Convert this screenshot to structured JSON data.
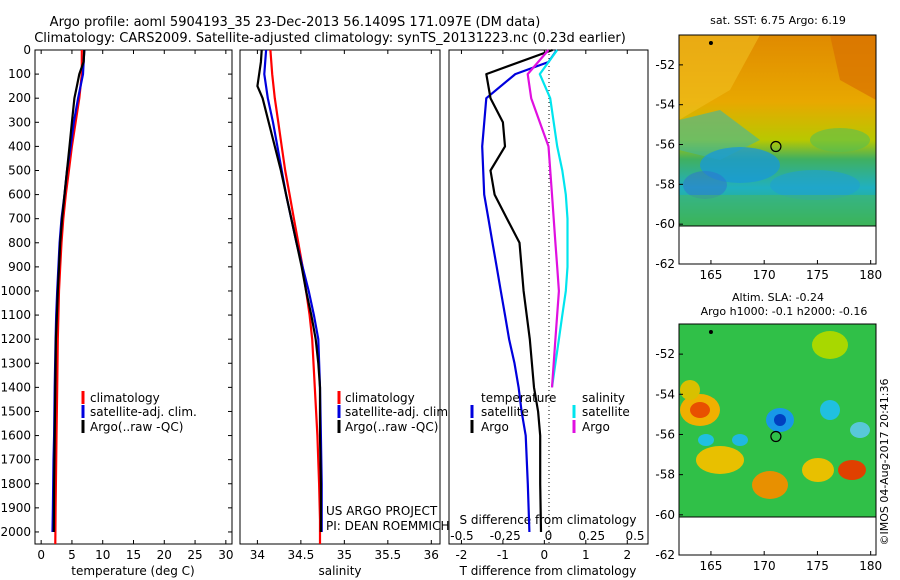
{
  "header": {
    "line1": "Argo profile: aoml 5904193_35 23-Dec-2013 56.1409S 171.097E (DM data)",
    "line2": "Climatology: CARS2009. Satellite-adjusted climatology: synTS_20131223.nc (0.23d earlier)"
  },
  "colors": {
    "climatology": "#ff0000",
    "satellite": "#0000dd",
    "argo": "#000000",
    "salinity_sat": "#00e5ee",
    "salinity_argo": "#e010e0"
  },
  "chart_data": [
    {
      "type": "line",
      "xlabel": "temperature (deg C)",
      "ylabel": "",
      "xlim": [
        -1,
        31
      ],
      "ylim": [
        2050,
        0
      ],
      "xticks": [
        0,
        5,
        10,
        15,
        20,
        25,
        30
      ],
      "yticks": [
        0,
        100,
        200,
        300,
        400,
        500,
        600,
        700,
        800,
        900,
        1000,
        1100,
        1200,
        1300,
        1400,
        1500,
        1600,
        1700,
        1800,
        1900,
        2000
      ],
      "legend": [
        "climatology",
        "satellite-adj. clim.",
        "Argo(..raw -QC)"
      ],
      "series": [
        {
          "name": "climatology",
          "color": "#ff0000",
          "x": [
            6.6,
            6.6,
            6.2,
            5.6,
            5.0,
            4.5,
            4.0,
            3.6,
            3.3,
            3.1,
            2.9,
            2.8,
            2.7,
            2.6,
            2.5,
            2.45,
            2.4,
            2.35,
            2.3
          ],
          "y": [
            0,
            100,
            200,
            300,
            400,
            500,
            600,
            700,
            800,
            900,
            1000,
            1100,
            1200,
            1400,
            1600,
            1700,
            1800,
            1900,
            2050
          ]
        },
        {
          "name": "satellite-adj. clim.",
          "color": "#0000dd",
          "x": [
            7.0,
            6.8,
            6.0,
            5.3,
            4.8,
            4.2,
            3.8,
            3.3,
            3.0,
            2.8,
            2.6,
            2.45,
            2.35,
            2.2,
            2.1,
            2.0,
            1.95,
            1.9,
            1.85
          ],
          "y": [
            0,
            100,
            200,
            300,
            400,
            500,
            600,
            700,
            800,
            900,
            1000,
            1100,
            1200,
            1400,
            1600,
            1700,
            1800,
            1900,
            2000
          ]
        },
        {
          "name": "Argo(..raw -QC)",
          "color": "#000000",
          "x": [
            7.0,
            6.9,
            6.2,
            5.8,
            5.4,
            5.0,
            4.6,
            4.2,
            3.8,
            3.4,
            3.1,
            2.9,
            2.7,
            2.55,
            2.4,
            2.3,
            2.2,
            2.1,
            2.05
          ],
          "y": [
            0,
            50,
            100,
            150,
            200,
            300,
            400,
            500,
            600,
            700,
            800,
            900,
            1000,
            1100,
            1200,
            1400,
            1600,
            1800,
            2000
          ]
        }
      ]
    },
    {
      "type": "line",
      "xlabel": "salinity",
      "xlim": [
        33.8,
        36.1
      ],
      "ylim": [
        2050,
        0
      ],
      "xticks": [
        34,
        34.5,
        35,
        35.5,
        36
      ],
      "xticklabels": [
        "34",
        "34.5",
        "35",
        "35.5",
        "36"
      ],
      "legend": [
        "climatology",
        "satellite-adj. clim.",
        "Argo(..raw -QC)"
      ],
      "annotation": [
        "US ARGO PROJECT",
        "PI: DEAN ROEMMICH"
      ],
      "series": [
        {
          "name": "climatology",
          "color": "#ff0000",
          "x": [
            34.15,
            34.17,
            34.2,
            34.24,
            34.28,
            34.32,
            34.37,
            34.42,
            34.47,
            34.52,
            34.56,
            34.6,
            34.63,
            34.66,
            34.69,
            34.71,
            34.72,
            34.72
          ],
          "y": [
            0,
            100,
            200,
            300,
            400,
            500,
            600,
            700,
            800,
            900,
            1000,
            1100,
            1200,
            1400,
            1600,
            1800,
            1950,
            2050
          ]
        },
        {
          "name": "satellite-adj. clim.",
          "color": "#0000dd",
          "x": [
            34.1,
            34.08,
            34.12,
            34.18,
            34.23,
            34.28,
            34.33,
            34.39,
            34.45,
            34.52,
            34.59,
            34.65,
            34.7,
            34.72,
            34.73,
            34.74,
            34.74
          ],
          "y": [
            0,
            100,
            200,
            300,
            400,
            500,
            600,
            700,
            800,
            900,
            1000,
            1100,
            1200,
            1400,
            1600,
            1800,
            2000
          ]
        },
        {
          "name": "Argo(..raw -QC)",
          "color": "#000000",
          "x": [
            34.05,
            34.04,
            34.0,
            34.06,
            34.13,
            34.2,
            34.27,
            34.33,
            34.39,
            34.45,
            34.51,
            34.56,
            34.62,
            34.67,
            34.7,
            34.72,
            34.72,
            34.73,
            34.73
          ],
          "y": [
            0,
            50,
            150,
            200,
            300,
            400,
            500,
            600,
            700,
            800,
            900,
            1000,
            1100,
            1200,
            1300,
            1400,
            1600,
            1800,
            2000
          ]
        }
      ]
    },
    {
      "type": "line",
      "xlabel": "T difference from climatology",
      "xlabel_top": "S difference from climatology",
      "xlim": [
        -2.3,
        2.5
      ],
      "ylim": [
        2050,
        0
      ],
      "xticks": [
        -2,
        -1,
        0,
        1,
        2
      ],
      "xtop_ticks": [
        -0.5,
        -0.25,
        0,
        0.25,
        0.5
      ],
      "xtop_ticklabels": [
        "-0.5",
        "-0.25",
        "0",
        "0.25",
        "0.5"
      ],
      "legend_left": [
        "temperature",
        "satellite",
        "Argo"
      ],
      "legend_right": [
        "salinity",
        "satellite",
        "Argo"
      ],
      "series": [
        {
          "name": "satellite",
          "color": "#0000dd",
          "x": [
            0.3,
            0.1,
            -0.7,
            -1.4,
            -1.5,
            -1.45,
            -1.35,
            -1.25,
            -1.15,
            -1.05,
            -0.95,
            -0.85,
            -0.72,
            -0.62,
            -0.55,
            -0.45,
            -0.4,
            -0.38,
            -0.36
          ],
          "y": [
            0,
            50,
            100,
            200,
            400,
            600,
            700,
            800,
            900,
            1000,
            1100,
            1200,
            1300,
            1400,
            1500,
            1600,
            1800,
            1900,
            2000
          ]
        },
        {
          "name": "Argo",
          "color": "#000000",
          "x": [
            0.2,
            -1.4,
            -1.3,
            -1.0,
            -0.95,
            -1.3,
            -1.2,
            -0.9,
            -0.6,
            -0.5,
            -0.35,
            -0.25,
            -0.15,
            -0.1,
            -0.1,
            -0.08
          ],
          "y": [
            0,
            100,
            200,
            300,
            400,
            500,
            600,
            700,
            800,
            1000,
            1200,
            1400,
            1500,
            1600,
            1800,
            2000
          ]
        },
        {
          "name": "satellite",
          "color": "#00e5ee",
          "x": [
            0.05,
            -0.05,
            0.01,
            0.03,
            0.05,
            0.08,
            0.1,
            0.11,
            0.11,
            0.1,
            0.08,
            0.06,
            0.04,
            0.02
          ],
          "y": [
            0,
            100,
            200,
            300,
            400,
            500,
            600,
            700,
            900,
            1000,
            1100,
            1200,
            1300,
            1400
          ]
        },
        {
          "name": "Argo",
          "color": "#e010e0",
          "x": [
            0.0,
            -0.12,
            -0.1,
            -0.05,
            0.0,
            0.02,
            0.04,
            0.05,
            0.06,
            0.04,
            0.02
          ],
          "y": [
            0,
            100,
            200,
            300,
            400,
            600,
            800,
            900,
            1000,
            1200,
            1400
          ]
        }
      ]
    },
    {
      "type": "heatmap",
      "title": "sat. SST: 6.75  Argo: 6.19",
      "xlim": [
        162,
        180.5
      ],
      "ylim": [
        -62,
        -50.5
      ],
      "xticks": [
        165,
        170,
        175,
        180
      ],
      "yticks": [
        -52,
        -54,
        -56,
        -58,
        -60,
        -62
      ],
      "marker": {
        "lon": 171.1,
        "lat": -56.1
      }
    },
    {
      "type": "heatmap",
      "title": "Altim. SLA: -0.24",
      "subtitle": "Argo h1000: -0.1  h2000: -0.16",
      "xlim": [
        162,
        180.5
      ],
      "ylim": [
        -62,
        -50.5
      ],
      "xticks": [
        165,
        170,
        175,
        180
      ],
      "yticks": [
        -52,
        -54,
        -56,
        -58,
        -60,
        -62
      ],
      "marker": {
        "lon": 171.1,
        "lat": -56.1
      }
    }
  ],
  "footer": {
    "watermark": "©IMOS 04-Aug-2017 20:41:36"
  }
}
